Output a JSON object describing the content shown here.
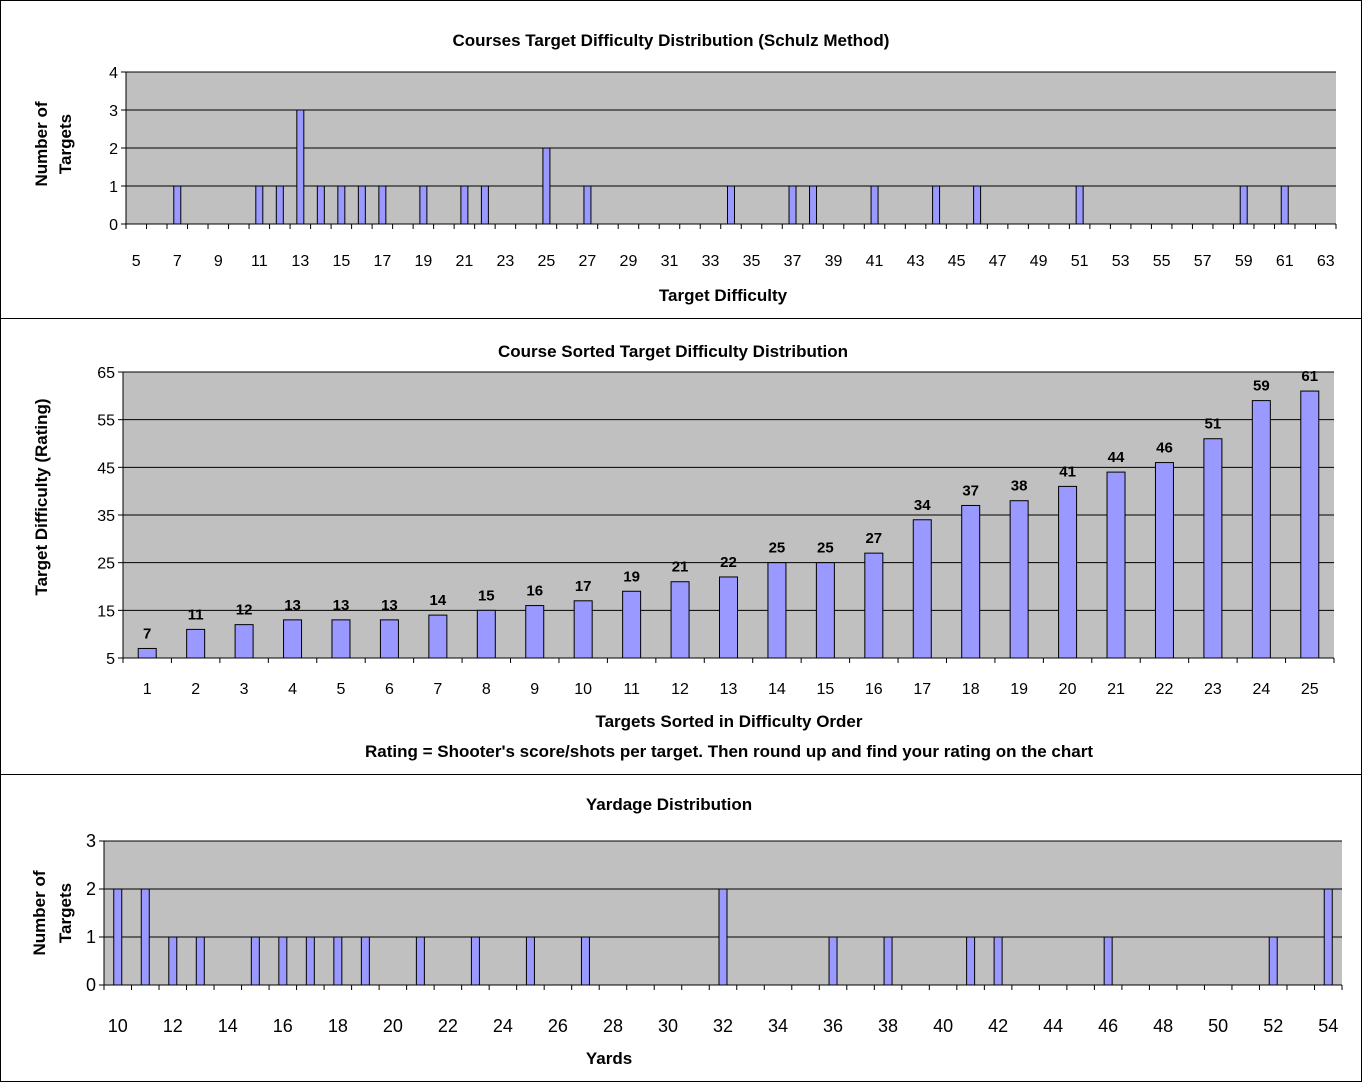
{
  "chart_data": [
    {
      "type": "bar",
      "title": "Courses Target Difficulty Distribution (Schulz Method)",
      "xlabel": "Target Difficulty",
      "ylabel": "Number of Targets",
      "ylim": [
        0,
        4
      ],
      "yticks": [
        0,
        1,
        2,
        3,
        4
      ],
      "x_range": [
        5,
        64
      ],
      "xtick_labels": [
        5,
        7,
        9,
        11,
        13,
        15,
        17,
        19,
        21,
        23,
        25,
        27,
        29,
        31,
        33,
        35,
        37,
        39,
        41,
        43,
        45,
        47,
        49,
        51,
        53,
        55,
        57,
        59,
        61,
        63
      ],
      "x": [
        7,
        11,
        12,
        13,
        14,
        15,
        16,
        17,
        19,
        21,
        22,
        25,
        27,
        34,
        37,
        38,
        41,
        44,
        46,
        51,
        59,
        61
      ],
      "values": [
        1,
        1,
        1,
        3,
        1,
        1,
        1,
        1,
        1,
        1,
        1,
        2,
        1,
        1,
        1,
        1,
        1,
        1,
        1,
        1,
        1,
        1
      ],
      "grid": true
    },
    {
      "type": "bar",
      "title": "Course Sorted Target Difficulty Distribution",
      "xlabel": "Targets Sorted in Difficulty Order",
      "ylabel": "Target Difficulty (Rating)",
      "note": "Rating = Shooter's score/shots per target. Then round up and find your rating on the chart",
      "ylim": [
        5,
        65
      ],
      "yticks": [
        5,
        15,
        25,
        35,
        45,
        55,
        65
      ],
      "categories": [
        1,
        2,
        3,
        4,
        5,
        6,
        7,
        8,
        9,
        10,
        11,
        12,
        13,
        14,
        15,
        16,
        17,
        18,
        19,
        20,
        21,
        22,
        23,
        24,
        25
      ],
      "values": [
        7,
        11,
        12,
        13,
        13,
        13,
        14,
        15,
        16,
        17,
        19,
        21,
        22,
        25,
        25,
        27,
        34,
        37,
        38,
        41,
        44,
        46,
        51,
        59,
        61
      ],
      "grid": true
    },
    {
      "type": "bar",
      "title": "Yardage Distribution",
      "xlabel": "Yards",
      "ylabel": "Number of Targets",
      "ylim": [
        0,
        3
      ],
      "yticks": [
        0,
        1,
        2,
        3
      ],
      "x_range": [
        10,
        55
      ],
      "xtick_labels": [
        10,
        12,
        14,
        16,
        18,
        20,
        22,
        24,
        26,
        28,
        30,
        32,
        34,
        36,
        38,
        40,
        42,
        44,
        46,
        48,
        50,
        52,
        54
      ],
      "x": [
        10,
        11,
        12,
        13,
        15,
        16,
        17,
        18,
        19,
        21,
        23,
        25,
        27,
        32,
        36,
        38,
        41,
        42,
        46,
        52,
        54
      ],
      "values": [
        2,
        2,
        1,
        1,
        1,
        1,
        1,
        1,
        1,
        1,
        1,
        1,
        1,
        2,
        1,
        1,
        1,
        1,
        1,
        1,
        2
      ],
      "grid": true
    }
  ],
  "colors": {
    "plot_bg": "#c0c0c0",
    "bar": "#9999ff"
  }
}
